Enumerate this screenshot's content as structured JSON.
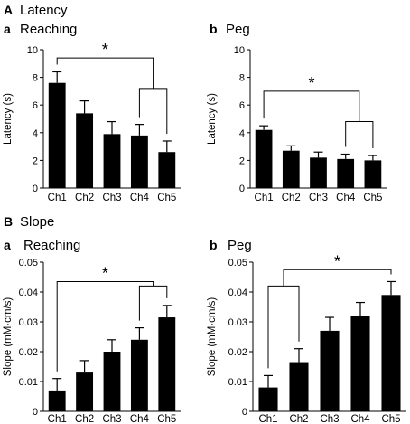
{
  "figure": {
    "sections": [
      {
        "letter": "A",
        "title": "Latency"
      },
      {
        "letter": "B",
        "title": "Slope"
      }
    ]
  },
  "chart_data": [
    {
      "type": "bar",
      "panel_letter": "a",
      "title": "Reaching",
      "ylabel": "Latency (s)",
      "xlabel": "",
      "ylim": [
        0,
        10
      ],
      "yticks": [
        "0",
        "2",
        "4",
        "6",
        "8",
        "10"
      ],
      "categories": [
        "Ch1",
        "Ch2",
        "Ch3",
        "Ch4",
        "Ch5"
      ],
      "values": [
        7.6,
        5.4,
        3.9,
        3.8,
        2.6
      ],
      "errors": [
        0.8,
        0.9,
        0.9,
        0.8,
        0.8
      ],
      "bar_color": "#000000",
      "brackets": [
        {
          "left": "Ch1",
          "right_group": [
            "Ch4",
            "Ch5"
          ],
          "label": "*",
          "level": 9.4,
          "inner_level": 7.2
        }
      ]
    },
    {
      "type": "bar",
      "panel_letter": "b",
      "title": "Peg",
      "ylabel": "Latency (s)",
      "xlabel": "",
      "ylim": [
        0,
        10
      ],
      "yticks": [
        "0",
        "2",
        "4",
        "6",
        "8",
        "10"
      ],
      "categories": [
        "Ch1",
        "Ch2",
        "Ch3",
        "Ch4",
        "Ch5"
      ],
      "values": [
        4.2,
        2.7,
        2.2,
        2.1,
        2.0
      ],
      "errors": [
        0.3,
        0.35,
        0.4,
        0.35,
        0.35
      ],
      "bar_color": "#000000",
      "brackets": [
        {
          "left": "Ch1",
          "right_group": [
            "Ch4",
            "Ch5"
          ],
          "label": "*",
          "level": 7.0,
          "inner_level": 4.8
        }
      ]
    },
    {
      "type": "bar",
      "panel_letter": "a",
      "title": "Reaching",
      "ylabel": "Slope (mM·cm/s)",
      "xlabel": "",
      "ylim": [
        0,
        0.05
      ],
      "yticks": [
        "0",
        "0.01",
        "0.02",
        "0.03",
        "0.04",
        "0.05"
      ],
      "categories": [
        "Ch1",
        "Ch2",
        "Ch3",
        "Ch4",
        "Ch5"
      ],
      "values": [
        0.007,
        0.013,
        0.02,
        0.024,
        0.0315
      ],
      "errors": [
        0.004,
        0.004,
        0.004,
        0.004,
        0.004
      ],
      "bar_color": "#000000",
      "brackets": [
        {
          "left": "Ch1",
          "right_group": [
            "Ch4",
            "Ch5"
          ],
          "label": "*",
          "level": 0.0435,
          "inner_level": 0.042
        }
      ]
    },
    {
      "type": "bar",
      "panel_letter": "b",
      "title": "Peg",
      "ylabel": "Slope (mM·cm/s)",
      "xlabel": "",
      "ylim": [
        0,
        0.05
      ],
      "yticks": [
        "0",
        "0.01",
        "0.02",
        "0.03",
        "0.04",
        "0.05"
      ],
      "categories": [
        "Ch1",
        "Ch2",
        "Ch3",
        "Ch4",
        "Ch5"
      ],
      "values": [
        0.008,
        0.0165,
        0.027,
        0.032,
        0.039
      ],
      "errors": [
        0.004,
        0.0045,
        0.0045,
        0.0045,
        0.0045
      ],
      "bar_color": "#000000",
      "brackets": [
        {
          "left_group": [
            "Ch1",
            "Ch2"
          ],
          "right": "Ch5",
          "label": "*",
          "level": 0.0475,
          "inner_level": 0.042
        }
      ]
    }
  ]
}
